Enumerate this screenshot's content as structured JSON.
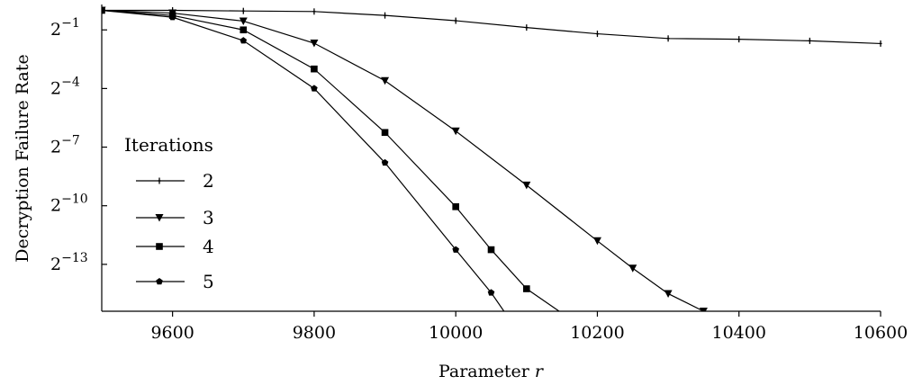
{
  "chart_data": {
    "type": "line",
    "xlabel": "Parameter",
    "xlabel_var": "r",
    "ylabel": "Decryption Failure Rate",
    "xlim": [
      9500,
      10600
    ],
    "ylim_log2": [
      -15.4,
      0.3
    ],
    "y_scale": "log2",
    "x_ticks": [
      9600,
      9800,
      10000,
      10200,
      10400,
      10600
    ],
    "x_tick_labels": [
      "9600",
      "9800",
      "10000",
      "10200",
      "10400",
      "10600"
    ],
    "y_ticks_exponent": [
      -1,
      -4,
      -7,
      -10,
      -13
    ],
    "y_tick_labels": [
      {
        "base": "2",
        "exp": "−1"
      },
      {
        "base": "2",
        "exp": "−4"
      },
      {
        "base": "2",
        "exp": "−7"
      },
      {
        "base": "2",
        "exp": "−10"
      },
      {
        "base": "2",
        "exp": "−13"
      }
    ],
    "grid": false,
    "legend": {
      "title": "Iterations",
      "position": "left-center"
    },
    "series": [
      {
        "name": "2",
        "marker": "plus",
        "x": [
          9500,
          9600,
          9700,
          9800,
          9900,
          10000,
          10100,
          10200,
          10300,
          10400,
          10500,
          10600
        ],
        "log2_y": [
          0.0,
          0.0,
          -0.03,
          -0.06,
          -0.26,
          -0.53,
          -0.88,
          -1.2,
          -1.44,
          -1.48,
          -1.56,
          -1.7
        ]
      },
      {
        "name": "3",
        "marker": "triangle-down",
        "x": [
          9500,
          9600,
          9700,
          9800,
          9900,
          10000,
          10100,
          10200,
          10250,
          10300,
          10350
        ],
        "log2_y": [
          0.0,
          -0.14,
          -0.55,
          -1.68,
          -3.6,
          -6.18,
          -8.95,
          -11.8,
          -13.2,
          -14.5,
          -15.4
        ]
      },
      {
        "name": "4",
        "marker": "square",
        "x": [
          9500,
          9600,
          9700,
          9800,
          9900,
          10000,
          10050,
          10100,
          10150
        ],
        "log2_y": [
          0.0,
          -0.26,
          -1.0,
          -3.0,
          -6.25,
          -10.05,
          -12.25,
          -14.25,
          -15.5
        ]
      },
      {
        "name": "5",
        "marker": "pentagon",
        "x": [
          9500,
          9600,
          9700,
          9800,
          9900,
          10000,
          10050,
          10070
        ],
        "log2_y": [
          0.0,
          -0.35,
          -1.55,
          -4.0,
          -7.8,
          -12.25,
          -14.45,
          -15.5
        ]
      }
    ]
  }
}
